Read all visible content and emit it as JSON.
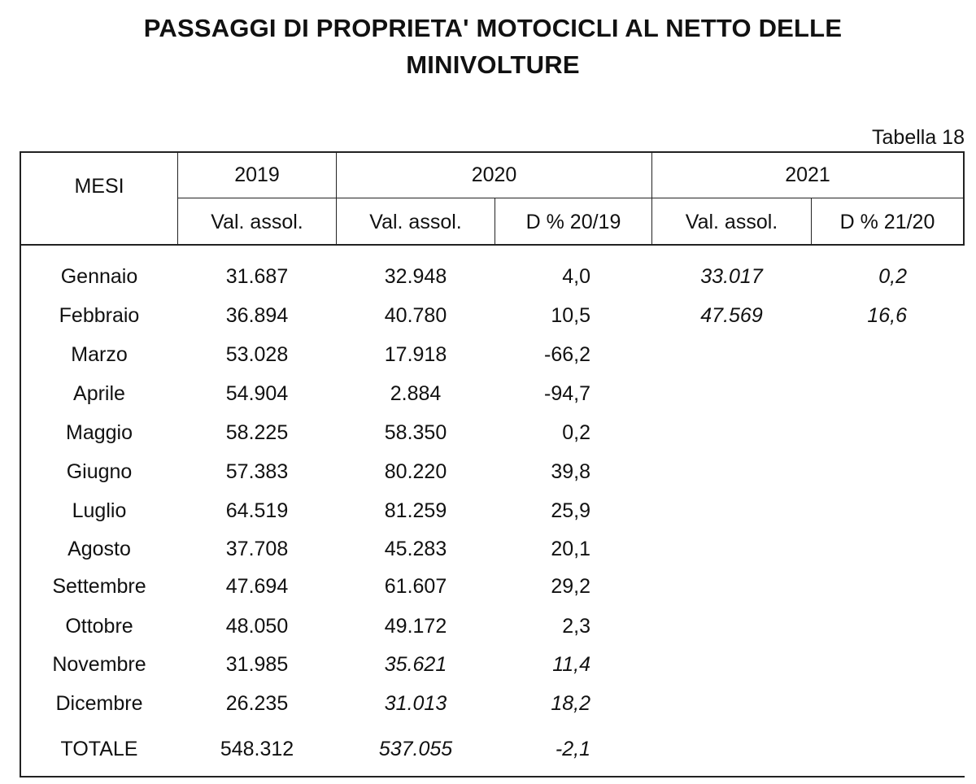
{
  "title": {
    "line1": "PASSAGGI DI PROPRIETA' MOTOCICLI AL NETTO DELLE",
    "line2": "MINIVOLTURE"
  },
  "table_label": "Tabella 18",
  "header": {
    "months": "MESI",
    "year_2019": "2019",
    "year_2020": "2020",
    "year_2021": "2021",
    "val_2019": "Val. assol.",
    "val_2020": "Val. assol.",
    "delta_2020": "D % 20/19",
    "val_2021": "Val. assol.",
    "delta_2021": "D % 21/20"
  },
  "rows": [
    {
      "month": "Gennaio",
      "v2019": "31.687",
      "v2020": "32.948",
      "d2020": "4,0",
      "v2021": "33.017",
      "d2021": "0,2"
    },
    {
      "month": "Febbraio",
      "v2019": "36.894",
      "v2020": "40.780",
      "d2020": "10,5",
      "v2021": "47.569",
      "d2021": "16,6"
    },
    {
      "month": "Marzo",
      "v2019": "53.028",
      "v2020": "17.918",
      "d2020": "-66,2",
      "v2021": "",
      "d2021": ""
    },
    {
      "month": "Aprile",
      "v2019": "54.904",
      "v2020": "2.884",
      "d2020": "-94,7",
      "v2021": "",
      "d2021": ""
    },
    {
      "month": "Maggio",
      "v2019": "58.225",
      "v2020": "58.350",
      "d2020": "0,2",
      "v2021": "",
      "d2021": ""
    },
    {
      "month": "Giugno",
      "v2019": "57.383",
      "v2020": "80.220",
      "d2020": "39,8",
      "v2021": "",
      "d2021": ""
    },
    {
      "month": "Luglio",
      "v2019": "64.519",
      "v2020": "81.259",
      "d2020": "25,9",
      "v2021": "",
      "d2021": ""
    },
    {
      "month": "Agosto",
      "v2019": "37.708",
      "v2020": "45.283",
      "d2020": "20,1",
      "v2021": "",
      "d2021": ""
    },
    {
      "month": "Settembre",
      "v2019": "47.694",
      "v2020": "61.607",
      "d2020": "29,2",
      "v2021": "",
      "d2021": ""
    },
    {
      "month": "Ottobre",
      "v2019": "48.050",
      "v2020": "49.172",
      "d2020": "2,3",
      "v2021": "",
      "d2021": ""
    },
    {
      "month": "Novembre",
      "v2019": "31.985",
      "v2020": "35.621",
      "d2020": "11,4",
      "v2021": "",
      "d2021": ""
    },
    {
      "month": "Dicembre",
      "v2019": "26.235",
      "v2020": "31.013",
      "d2020": "18,2",
      "v2021": "",
      "d2021": ""
    }
  ],
  "total": {
    "label": "TOTALE",
    "v2019": "548.312",
    "v2020": "537.055",
    "d2020": "-2,1"
  }
}
